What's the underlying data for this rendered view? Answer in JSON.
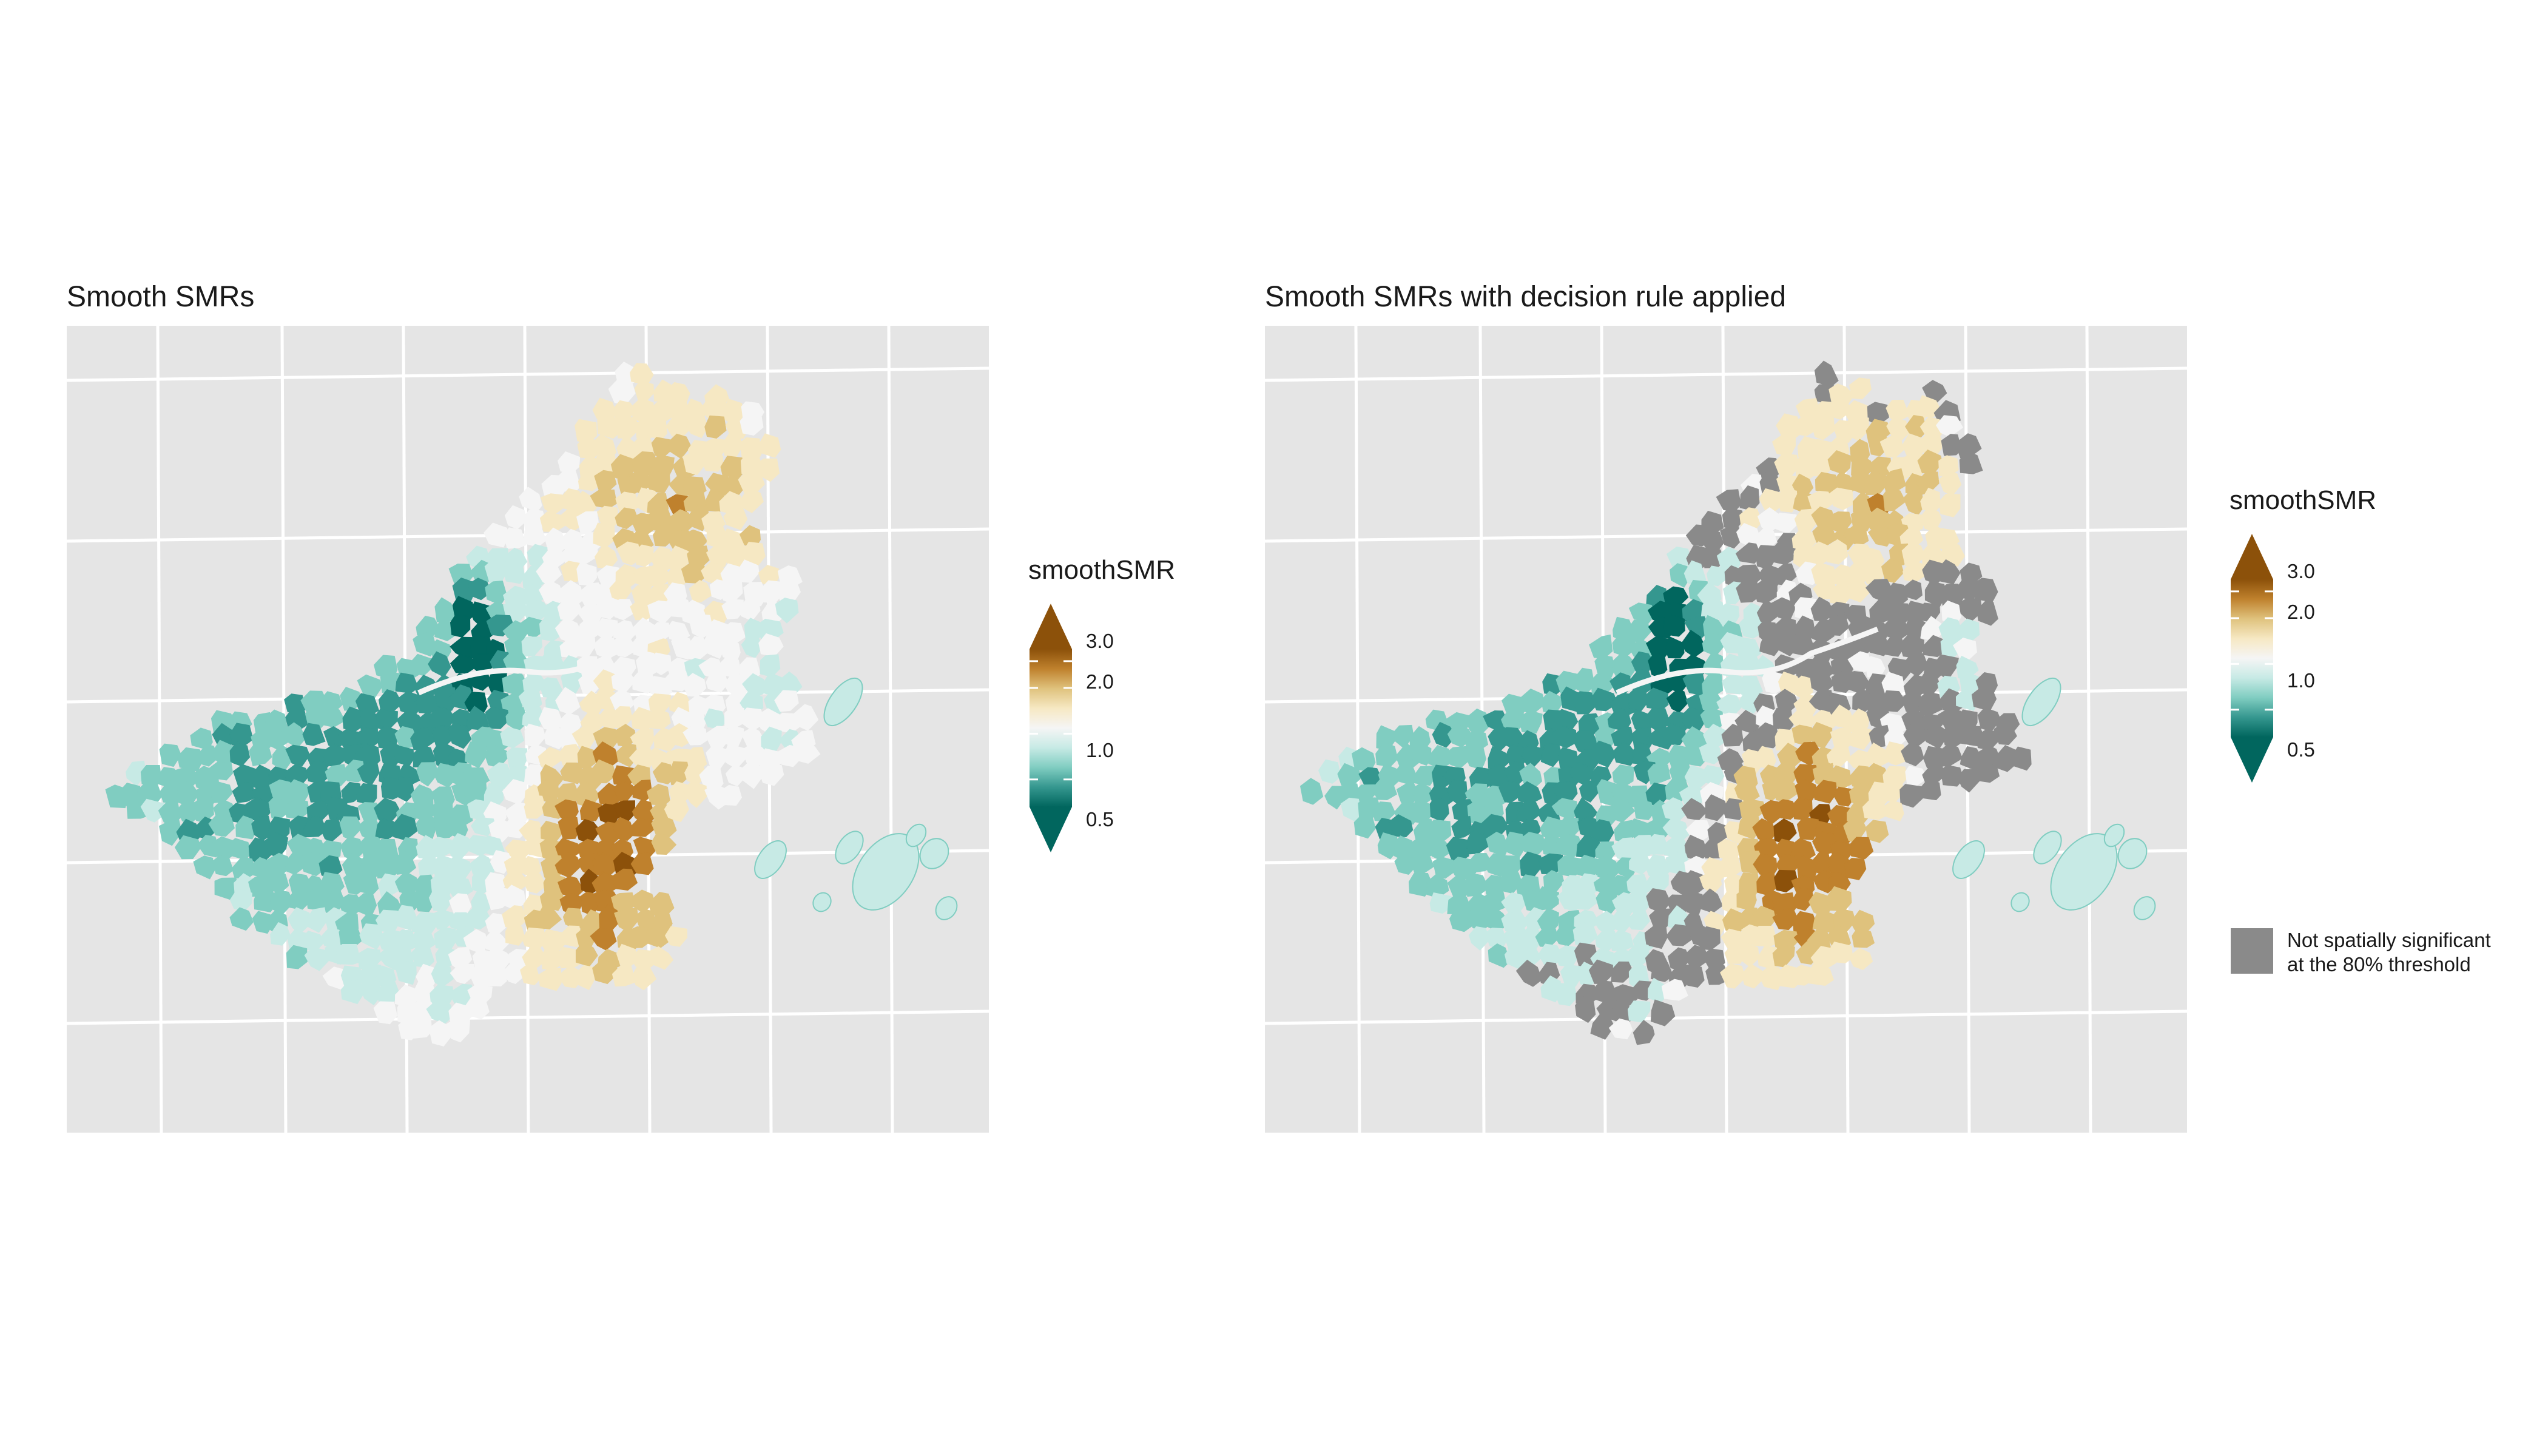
{
  "panels": [
    {
      "title": "Smooth SMRs",
      "legend_title": "smoothSMR",
      "decision_rule": false
    },
    {
      "title": "Smooth SMRs with decision rule applied",
      "legend_title": "smoothSMR",
      "decision_rule": true
    }
  ],
  "legend": {
    "ticks": [
      "3.0",
      "2.0",
      "1.0",
      "0.5"
    ],
    "tick_values": [
      3.0,
      2.0,
      1.0,
      0.5
    ],
    "range": [
      0.33,
      3.6
    ],
    "scale": "log",
    "colors": [
      "#01665e",
      "#35978f",
      "#80cdc1",
      "#c7eae5",
      "#f5f5f5",
      "#f6e8c3",
      "#dfc27d",
      "#bf812d",
      "#8c510a"
    ],
    "na_label_line1": "Not spatially significant",
    "na_label_line2": "at the 80% threshold",
    "na_color": "#8a8a8a"
  },
  "colors": {
    "panel_background": "#e5e5e5",
    "grid": "#ffffff",
    "boundary": "#e0e0e0"
  }
}
